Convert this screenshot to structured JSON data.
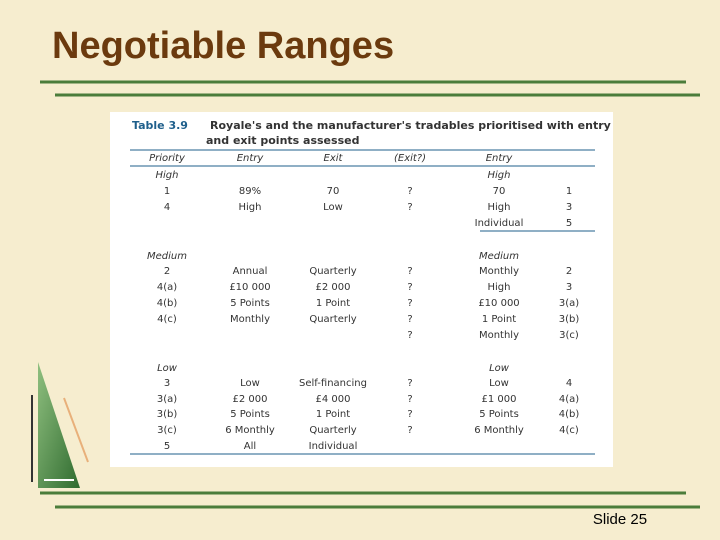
{
  "header": {
    "title": "Negotiable Ranges"
  },
  "table": {
    "label": "Table 3.9",
    "caption": "Royale's and the manufacturer's tradables prioritised with entry and exit points assessed",
    "columns": [
      "Priority",
      "Entry",
      "Exit",
      "(Exit?)",
      "Entry",
      null
    ],
    "rows": [
      [
        "High",
        null,
        null,
        null,
        "High",
        null
      ],
      [
        "1",
        "89%",
        "70",
        "?",
        "70",
        "1"
      ],
      [
        "4",
        "High",
        "Low",
        "?",
        "High",
        "3"
      ],
      [
        null,
        null,
        null,
        null,
        "Individual",
        "5"
      ],
      [
        "Medium",
        null,
        null,
        null,
        "Medium",
        null
      ],
      [
        "2",
        "Annual",
        "Quarterly",
        "?",
        "Monthly",
        "2"
      ],
      [
        "4(a)",
        "£10 000",
        "£2 000",
        "?",
        "High",
        "3"
      ],
      [
        "4(b)",
        "5 Points",
        "1 Point",
        "?",
        "£10 000",
        "3(a)"
      ],
      [
        "4(c)",
        "Monthly",
        "Quarterly",
        "?",
        "1 Point",
        "3(b)"
      ],
      [
        null,
        null,
        null,
        "?",
        "Monthly",
        "3(c)"
      ],
      [
        "Low",
        null,
        null,
        null,
        "Low",
        null
      ],
      [
        "3",
        "Low",
        "Self-financing",
        "?",
        "Low",
        "4"
      ],
      [
        "3(a)",
        "£2 000",
        "£4 000",
        "?",
        "£1 000",
        "4(a)"
      ],
      [
        "3(b)",
        "5 Points",
        "1 Point",
        "?",
        "5 Points",
        "4(b)"
      ],
      [
        "3(c)",
        "6 Monthly",
        "Quarterly",
        "?",
        "6 Monthly",
        "4(c)"
      ],
      [
        "5",
        "All",
        "Individual",
        null,
        null,
        null
      ]
    ]
  },
  "footer": {
    "slide": "Slide 25"
  }
}
